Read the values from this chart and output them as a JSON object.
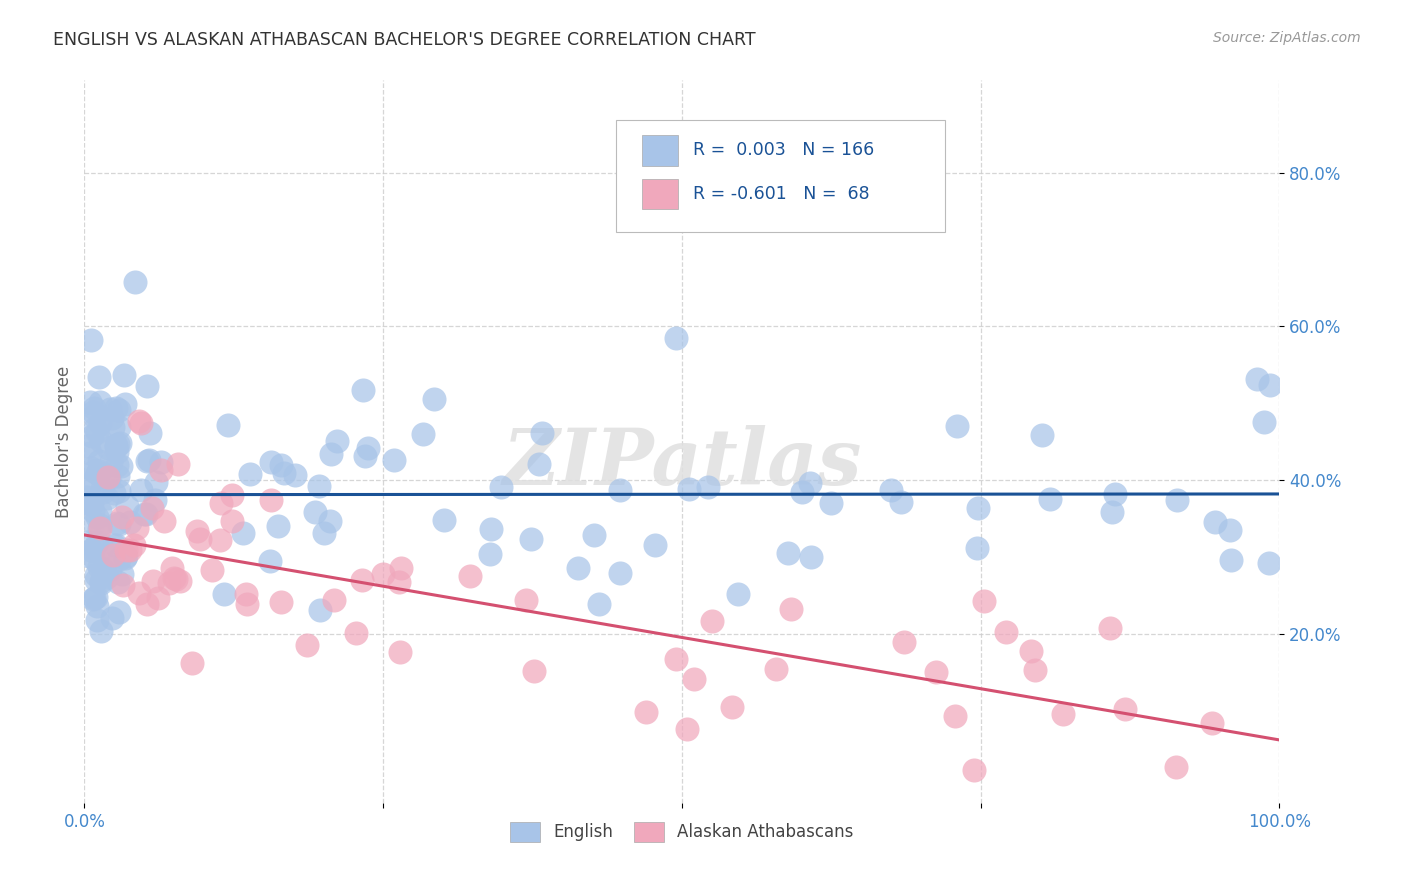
{
  "title": "ENGLISH VS ALASKAN ATHABASCAN BACHELOR'S DEGREE CORRELATION CHART",
  "source": "Source: ZipAtlas.com",
  "ylabel": "Bachelor's Degree",
  "watermark": "ZIPatlas",
  "english_R": 0.003,
  "english_N": 166,
  "athabascan_R": -0.601,
  "athabascan_N": 68,
  "xlim": [
    0.0,
    1.0
  ],
  "ylim": [
    -0.02,
    0.92
  ],
  "yticks": [
    0.2,
    0.4,
    0.6,
    0.8
  ],
  "ytick_labels": [
    "20.0%",
    "40.0%",
    "60.0%",
    "80.0%"
  ],
  "english_color": "#a8c4e8",
  "english_line_color": "#1a5296",
  "athabascan_color": "#f0a8bc",
  "athabascan_line_color": "#d45070",
  "legend_text_color": "#1a5296",
  "bg_color": "#ffffff",
  "grid_color": "#cccccc",
  "title_color": "#333333",
  "source_color": "#999999",
  "axis_tick_color": "#4488cc"
}
